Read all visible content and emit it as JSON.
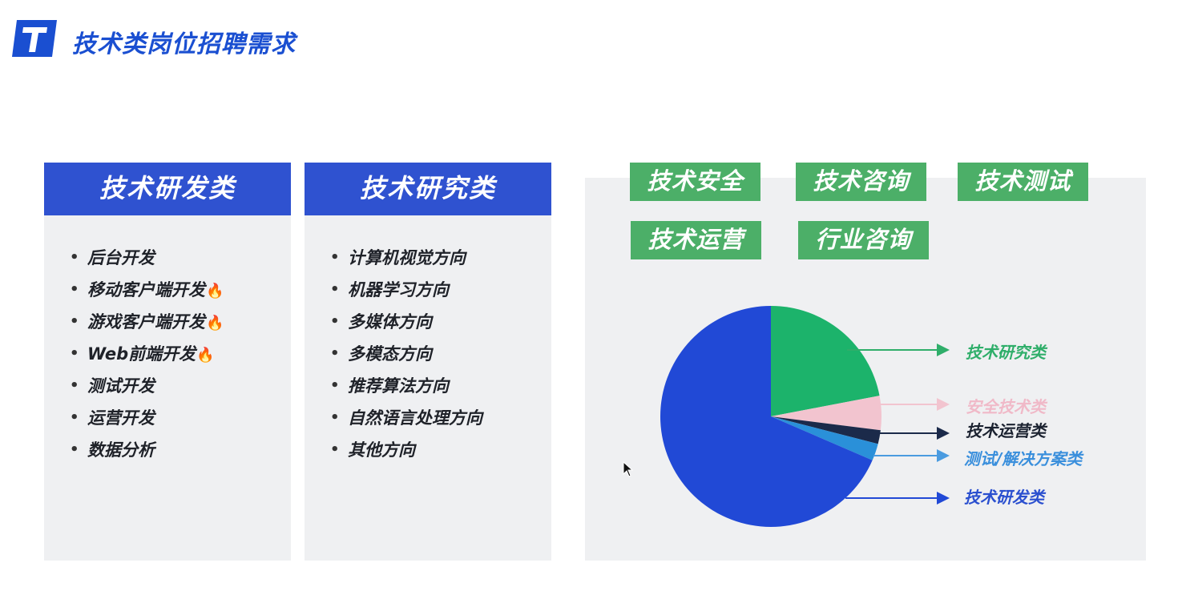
{
  "header": {
    "logo_letter": "T",
    "title": "技术类岗位招聘需求"
  },
  "panels": [
    {
      "title": "技术研发类",
      "items": [
        {
          "text": "后台开发",
          "fire": false
        },
        {
          "text": "移动客户端开发",
          "fire": true
        },
        {
          "text": "游戏客户端开发",
          "fire": true
        },
        {
          "text": "Web前端开发",
          "fire": true
        },
        {
          "text": "测试开发",
          "fire": false
        },
        {
          "text": "运营开发",
          "fire": false
        },
        {
          "text": "数据分析",
          "fire": false
        }
      ]
    },
    {
      "title": "技术研究类",
      "items": [
        {
          "text": "计算机视觉方向",
          "fire": false
        },
        {
          "text": "机器学习方向",
          "fire": false
        },
        {
          "text": "多媒体方向",
          "fire": false
        },
        {
          "text": "多模态方向",
          "fire": false
        },
        {
          "text": "推荐算法方向",
          "fire": false
        },
        {
          "text": "自然语言处理方向",
          "fire": false
        },
        {
          "text": "其他方向",
          "fire": false
        }
      ]
    }
  ],
  "tags": [
    "技术安全",
    "技术咨询",
    "技术测试",
    "技术运营",
    "行业咨询"
  ],
  "icons": {
    "fire": "🔥",
    "bullet": "•"
  },
  "colors": {
    "brand_blue": "#1a4fd1",
    "panel_header": "#2f52d0",
    "tag_green": "#4caf68"
  },
  "chart_data": {
    "type": "pie",
    "slices": [
      {
        "label": "技术研究类",
        "value": 22,
        "color": "#1cb36b"
      },
      {
        "label": "安全技术类",
        "value": 5,
        "color": "#f2c4cf"
      },
      {
        "label": "技术运营类",
        "value": 2,
        "color": "#1b2a4a"
      },
      {
        "label": "测试/解决方案类",
        "value": 2.5,
        "color": "#2a90d9"
      },
      {
        "label": "技术研发类",
        "value": 68.5,
        "color": "#2149d6"
      }
    ]
  }
}
